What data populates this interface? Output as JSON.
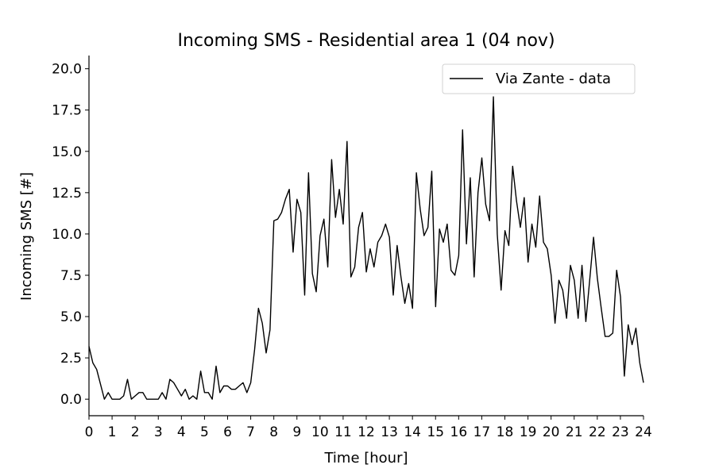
{
  "chart_data": {
    "type": "line",
    "title": "Incoming SMS - Residential area 1 (04 nov)",
    "xlabel": "Time [hour]",
    "ylabel": "Incoming SMS [#]",
    "xlim": [
      0,
      24
    ],
    "ylim": [
      -1.0,
      20.8
    ],
    "xticks": [
      0,
      1,
      2,
      3,
      4,
      5,
      6,
      7,
      8,
      9,
      10,
      11,
      12,
      13,
      14,
      15,
      16,
      17,
      18,
      19,
      20,
      21,
      22,
      23,
      24
    ],
    "xtick_labels": [
      "0",
      "1",
      "2",
      "3",
      "4",
      "5",
      "6",
      "7",
      "8",
      "9",
      "10",
      "11",
      "12",
      "13",
      "14",
      "15",
      "16",
      "17",
      "18",
      "19",
      "20",
      "21",
      "22",
      "23",
      "24"
    ],
    "yticks": [
      0,
      2.5,
      5,
      7.5,
      10,
      12.5,
      15,
      17.5,
      20
    ],
    "ytick_labels": [
      "0.0",
      "2.5",
      "5.0",
      "7.5",
      "10.0",
      "12.5",
      "15.0",
      "17.5",
      "20.0"
    ],
    "grid": false,
    "legend_position": "top-right",
    "series": [
      {
        "name": "Via Zante - data",
        "color": "#000000",
        "x_start": 0,
        "x_step": 0.1667,
        "values": [
          3.2,
          2.2,
          1.8,
          0.9,
          0.0,
          0.4,
          0.0,
          0.0,
          0.0,
          0.2,
          1.2,
          0.0,
          0.2,
          0.4,
          0.4,
          0.0,
          0.0,
          0.0,
          0.0,
          0.4,
          0.0,
          1.2,
          1.0,
          0.6,
          0.2,
          0.6,
          0.0,
          0.2,
          0.0,
          1.7,
          0.4,
          0.4,
          0.0,
          2.0,
          0.4,
          0.8,
          0.8,
          0.6,
          0.6,
          0.8,
          1.0,
          0.4,
          1.0,
          3.0,
          5.5,
          4.6,
          2.8,
          4.2,
          10.8,
          10.9,
          11.3,
          12.1,
          12.7,
          8.9,
          12.1,
          11.3,
          6.3,
          13.7,
          7.6,
          6.5,
          9.9,
          10.9,
          8.0,
          14.5,
          11.0,
          12.7,
          10.6,
          15.6,
          7.4,
          8.0,
          10.4,
          11.3,
          7.7,
          9.1,
          8.0,
          9.5,
          9.9,
          10.6,
          9.8,
          6.3,
          9.3,
          7.4,
          5.8,
          7.0,
          5.5,
          13.7,
          11.5,
          9.9,
          10.4,
          13.8,
          5.6,
          10.3,
          9.5,
          10.6,
          7.8,
          7.5,
          8.7,
          16.3,
          9.4,
          13.4,
          7.4,
          12.5,
          14.6,
          11.8,
          10.8,
          18.3,
          10.0,
          6.6,
          10.2,
          9.3,
          14.1,
          12.0,
          10.4,
          12.2,
          8.3,
          10.6,
          9.2,
          12.3,
          9.5,
          9.1,
          7.5,
          4.6,
          7.2,
          6.6,
          4.9,
          8.1,
          7.2,
          4.9,
          8.1,
          4.7,
          7.2,
          9.8,
          7.3,
          5.5,
          3.8,
          3.8,
          4.0,
          7.8,
          6.2,
          1.4,
          4.5,
          3.3,
          4.3,
          2.2,
          1.0
        ]
      }
    ]
  }
}
